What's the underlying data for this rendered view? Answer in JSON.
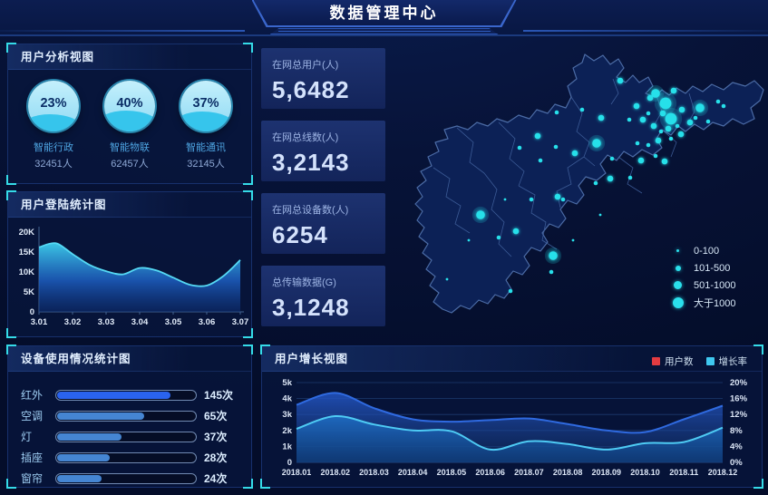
{
  "header": {
    "title": "数据管理中心"
  },
  "panels": {
    "user_analysis": {
      "title": "用户分析视图"
    },
    "login_stats": {
      "title": "用户登陆统计图"
    },
    "device_usage": {
      "title": "设备使用情况统计图"
    },
    "growth": {
      "title": "用户增长视图"
    }
  },
  "stats": [
    {
      "label": "在网总用户(人)",
      "value": "5,6482"
    },
    {
      "label": "在网总线数(人)",
      "value": "3,2143"
    },
    {
      "label": "在网总设备数(人)",
      "value": "6254"
    },
    {
      "label": "总传输数据(G)",
      "value": "3,1248"
    }
  ],
  "chart_data": [
    {
      "id": "user_gauges",
      "type": "gauge",
      "fill_color": "#36c5ec",
      "items": [
        {
          "percent_label": "23%",
          "value": 23,
          "label": "智能行政",
          "count": "32451人"
        },
        {
          "percent_label": "40%",
          "value": 40,
          "label": "智能物联",
          "count": "62457人"
        },
        {
          "percent_label": "37%",
          "value": 37,
          "label": "智能通讯",
          "count": "32145人"
        }
      ]
    },
    {
      "id": "login",
      "type": "area",
      "title": "用户登陆统计图",
      "x_ticks": [
        "3.01",
        "3.02",
        "3.03",
        "3.04",
        "3.05",
        "3.06",
        "3.07"
      ],
      "y_ticks": [
        "0",
        "5K",
        "10K",
        "15K",
        "20K"
      ],
      "y_max_k": 20,
      "values_k": [
        16.2,
        17.2,
        14.5,
        11.8,
        10.2,
        9.4,
        11.0,
        10.4,
        8.6,
        6.8,
        6.6,
        9.0,
        13.0
      ],
      "line_color": "#55d9f4"
    },
    {
      "id": "device",
      "type": "bar",
      "title": "设备使用情况统计图",
      "unit": "次",
      "categories": [
        "红外",
        "空调",
        "灯",
        "插座",
        "窗帘"
      ],
      "values": [
        145,
        65,
        37,
        28,
        24
      ],
      "value_labels": [
        "145次",
        "65次",
        "37次",
        "28次",
        "24次"
      ],
      "track_pct": [
        0.82,
        0.63,
        0.47,
        0.38,
        0.32
      ],
      "bar_colors": [
        "#2a63ee",
        "#4585d2"
      ]
    },
    {
      "id": "growth",
      "type": "area-dual",
      "title": "用户增长视图",
      "x": [
        "2018.01",
        "2018.02",
        "2018.03",
        "2018.04",
        "2018.05",
        "2018.06",
        "2018.07",
        "2018.08",
        "2018.09",
        "2018.10",
        "2018.11",
        "2018.12"
      ],
      "left_ticks": [
        "0",
        "1k",
        "2k",
        "3k",
        "4k",
        "5k"
      ],
      "left_max_k": 5,
      "right_ticks": [
        "0%",
        "4%",
        "8%",
        "12%",
        "16%",
        "20%"
      ],
      "right_max_pct": 20,
      "grid": true,
      "legend_position": "top-right",
      "series": [
        {
          "name": "用户数",
          "axis": "left",
          "color": "#e23b41",
          "line_color": "#2f6ae0",
          "values_k": [
            3.6,
            4.35,
            3.4,
            2.7,
            2.55,
            2.65,
            2.75,
            2.4,
            2.0,
            1.9,
            2.7,
            3.55
          ]
        },
        {
          "name": "增长率",
          "axis": "right",
          "color": "#3fc8f0",
          "line_color": "#4ecbf4",
          "values_pct": [
            8.4,
            11.6,
            9.5,
            8.0,
            7.8,
            3.2,
            5.3,
            4.6,
            3.2,
            4.8,
            5.1,
            8.7
          ]
        }
      ]
    },
    {
      "id": "map",
      "type": "scatter-map",
      "dot_color": "#27e0ea",
      "legend": [
        "0-100",
        "101-500",
        "501-1000",
        "大于1000"
      ],
      "dots": [
        [
          254,
          44,
          3
        ],
        [
          272,
          72,
          3
        ],
        [
          264,
          87,
          2
        ],
        [
          287,
          63,
          3
        ],
        [
          293,
          58,
          4
        ],
        [
          304,
          69,
          5
        ],
        [
          313,
          55,
          3
        ],
        [
          322,
          76,
          3
        ],
        [
          310,
          86,
          5
        ],
        [
          301,
          80,
          3
        ],
        [
          285,
          80,
          2
        ],
        [
          279,
          87,
          3
        ],
        [
          291,
          94,
          3
        ],
        [
          299,
          100,
          2
        ],
        [
          307,
          97,
          3
        ],
        [
          317,
          94,
          2
        ],
        [
          331,
          90,
          3
        ],
        [
          337,
          85,
          2
        ],
        [
          342,
          74,
          4
        ],
        [
          362,
          67,
          2
        ],
        [
          368,
          72,
          2
        ],
        [
          321,
          103,
          3
        ],
        [
          310,
          108,
          2
        ],
        [
          296,
          110,
          3
        ],
        [
          285,
          115,
          2
        ],
        [
          273,
          113,
          2
        ],
        [
          293,
          127,
          2
        ],
        [
          303,
          133,
          3
        ],
        [
          351,
          89,
          2
        ],
        [
          228,
          113,
          4
        ],
        [
          204,
          124,
          3
        ],
        [
          184,
          79,
          2
        ],
        [
          212,
          76,
          2
        ],
        [
          233,
          85,
          3
        ],
        [
          183,
          117,
          2
        ],
        [
          166,
          132,
          2
        ],
        [
          163,
          105,
          3
        ],
        [
          143,
          118,
          2
        ],
        [
          245,
          130,
          2
        ],
        [
          265,
          151,
          2
        ],
        [
          243,
          152,
          3
        ],
        [
          227,
          157,
          2
        ],
        [
          277,
          132,
          3
        ],
        [
          185,
          172,
          3
        ],
        [
          191,
          175,
          2
        ],
        [
          156,
          175,
          2
        ],
        [
          127,
          175,
          1
        ],
        [
          100,
          192,
          4
        ],
        [
          120,
          217,
          2
        ],
        [
          139,
          210,
          3
        ],
        [
          87,
          220,
          1
        ],
        [
          180,
          237,
          4
        ],
        [
          178,
          255,
          2
        ],
        [
          202,
          220,
          1
        ],
        [
          232,
          192,
          1
        ],
        [
          63,
          263,
          1
        ],
        [
          133,
          276,
          2
        ]
      ]
    }
  ]
}
